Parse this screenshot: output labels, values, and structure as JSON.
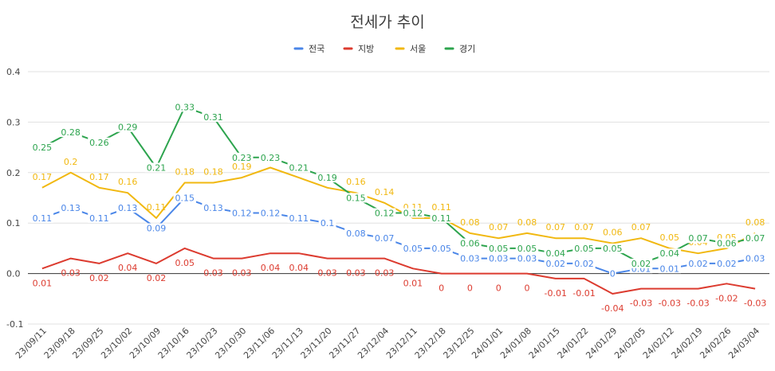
{
  "chart_data": {
    "type": "line",
    "title": "전세가 추이",
    "xlabel": "",
    "ylabel": "",
    "ylim": [
      -0.1,
      0.4
    ],
    "yticks": [
      -0.1,
      0.0,
      0.1,
      0.2,
      0.3,
      0.4
    ],
    "ytick_labels": [
      "-0.1",
      "0.0",
      "0.1",
      "0.2",
      "0.3",
      "0.4"
    ],
    "grid": true,
    "legend_position": "top",
    "categories": [
      "23/09/11",
      "23/09/18",
      "23/09/25",
      "23/10/02",
      "23/10/09",
      "23/10/16",
      "23/10/23",
      "23/10/30",
      "23/11/06",
      "23/11/13",
      "23/11/20",
      "23/11/27",
      "23/12/04",
      "23/12/11",
      "23/12/18",
      "23/12/25",
      "24/01/01",
      "24/01/08",
      "24/01/15",
      "24/01/22",
      "24/01/29",
      "24/02/05",
      "24/02/12",
      "24/02/19",
      "24/02/26",
      "24/03/04"
    ],
    "series": [
      {
        "name": "전국",
        "color": "#4a86e8",
        "label_pos": "center",
        "values": [
          0.11,
          0.13,
          0.11,
          0.13,
          0.09,
          0.15,
          0.13,
          0.12,
          0.12,
          0.11,
          0.1,
          0.08,
          0.07,
          0.05,
          0.05,
          0.03,
          0.03,
          0.03,
          0.02,
          0.02,
          0,
          0.01,
          0.01,
          0.02,
          0.02,
          0.03
        ]
      },
      {
        "name": "지방",
        "color": "#dc3b2f",
        "label_pos": "below",
        "values": [
          0.01,
          0.03,
          0.02,
          0.04,
          0.02,
          0.05,
          0.03,
          0.03,
          0.04,
          0.04,
          0.03,
          0.03,
          0.03,
          0.01,
          0,
          0,
          0,
          0,
          -0.01,
          -0.01,
          -0.04,
          -0.03,
          -0.03,
          -0.03,
          -0.02,
          -0.03
        ]
      },
      {
        "name": "서울",
        "color": "#f1b810",
        "label_pos": "above",
        "values": [
          0.17,
          0.2,
          0.17,
          0.16,
          0.11,
          0.18,
          0.18,
          0.19,
          0.21,
          0.19,
          0.17,
          0.16,
          0.14,
          0.11,
          0.11,
          0.08,
          0.07,
          0.08,
          0.07,
          0.07,
          0.06,
          0.07,
          0.05,
          0.04,
          0.05,
          0.08
        ]
      },
      {
        "name": "경기",
        "color": "#2da44e",
        "label_pos": "center",
        "values": [
          0.25,
          0.28,
          0.26,
          0.29,
          0.21,
          0.33,
          0.31,
          0.23,
          0.23,
          0.21,
          0.19,
          0.15,
          0.12,
          0.12,
          0.11,
          0.06,
          0.05,
          0.05,
          0.04,
          0.05,
          0.05,
          0.02,
          0.04,
          0.07,
          0.06,
          0.07
        ]
      }
    ]
  }
}
